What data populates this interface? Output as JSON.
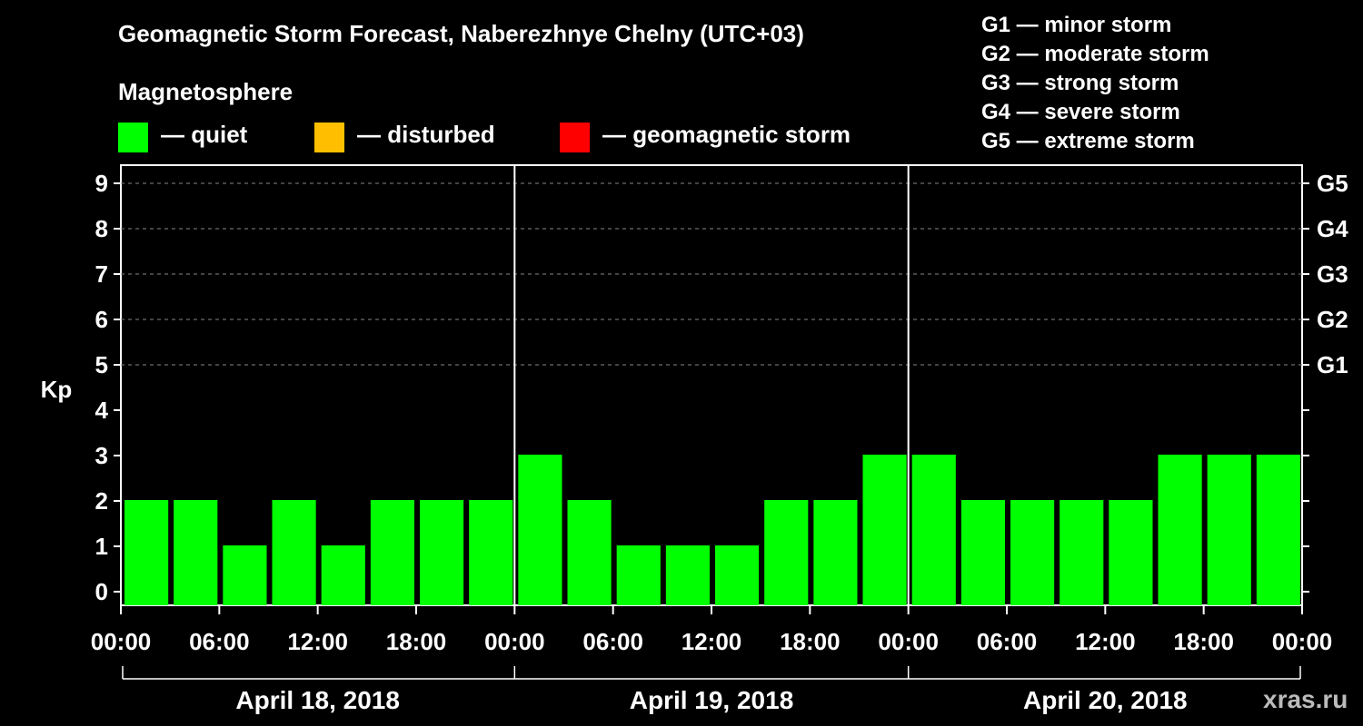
{
  "chart_data": {
    "type": "bar",
    "title": "Geomagnetic Storm Forecast, Naberezhnye Chelny (UTC+03)",
    "ylabel": "Kp",
    "ylim": [
      0,
      9
    ],
    "yticks": [
      "0",
      "1",
      "2",
      "3",
      "4",
      "5",
      "6",
      "7",
      "8",
      "9"
    ],
    "right_axis_labels": [
      {
        "kp": 5,
        "label": "G1"
      },
      {
        "kp": 6,
        "label": "G2"
      },
      {
        "kp": 7,
        "label": "G3"
      },
      {
        "kp": 8,
        "label": "G4"
      },
      {
        "kp": 9,
        "label": "G5"
      }
    ],
    "xtick_labels": [
      "00:00",
      "06:00",
      "12:00",
      "18:00",
      "00:00",
      "06:00",
      "12:00",
      "18:00",
      "00:00",
      "06:00",
      "12:00",
      "18:00",
      "00:00"
    ],
    "days": [
      "April 18, 2018",
      "April 19, 2018",
      "April 20, 2018"
    ],
    "values": [
      2,
      2,
      1,
      2,
      1,
      2,
      2,
      2,
      3,
      2,
      1,
      1,
      1,
      2,
      2,
      3,
      3,
      2,
      2,
      2,
      2,
      3,
      3,
      3
    ],
    "bar_color": "#00ff00",
    "grid": true,
    "legend": {
      "title": "Magnetosphere",
      "items": [
        {
          "label": "— quiet",
          "color": "#00ff00"
        },
        {
          "label": "— disturbed",
          "color": "#ffbf00"
        },
        {
          "label": "— geomagnetic storm",
          "color": "#ff0000"
        }
      ]
    },
    "storm_levels": [
      "G1 — minor storm",
      "G2 — moderate storm",
      "G3 — strong storm",
      "G4 — severe storm",
      "G5 — extreme storm"
    ]
  },
  "watermark": "xras.ru"
}
